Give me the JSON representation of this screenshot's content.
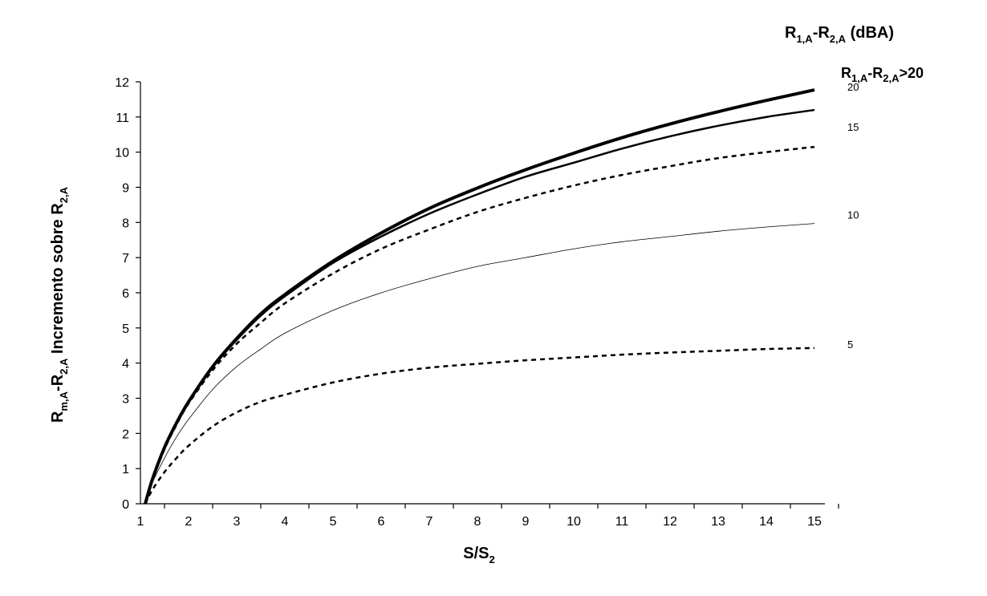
{
  "chart_data": {
    "type": "line",
    "title": "",
    "xlabel": {
      "main": "S/S",
      "sub": "2"
    },
    "ylabel": {
      "p1": "R",
      "s1": "m,A",
      "p2": "-R",
      "s2": "2,A",
      "p3": " Incremento sobre R",
      "s3": "2,A"
    },
    "legend_title": {
      "p1": "R",
      "s1": "1,A",
      "p2": "-R",
      "s2": "2,A",
      "p3": " (dBA)"
    },
    "legend_placement": "right",
    "xlim": [
      1,
      15
    ],
    "ylim": [
      0,
      12
    ],
    "x_ticks": [
      1,
      2,
      3,
      4,
      5,
      6,
      7,
      8,
      9,
      10,
      11,
      12,
      13,
      14,
      15
    ],
    "y_ticks": [
      0,
      1,
      2,
      3,
      4,
      5,
      6,
      7,
      8,
      9,
      10,
      11,
      12
    ],
    "grid": false,
    "x": [
      1.1,
      1.25,
      1.5,
      1.75,
      2,
      2.5,
      3,
      3.5,
      4,
      5,
      6,
      7,
      8,
      9,
      10,
      11,
      12,
      13,
      14,
      15
    ],
    "series": [
      {
        "name": "R1,A-R2,A>20",
        "tag": {
          "p1": "R",
          "s1": "1,A",
          "p2": "-R",
          "s2": "2,A",
          "p3": ">20"
        },
        "style": "thick",
        "values": [
          0.0,
          0.7,
          1.6,
          2.3,
          2.9,
          3.9,
          4.7,
          5.4,
          5.95,
          6.9,
          7.7,
          8.4,
          8.98,
          9.5,
          9.97,
          10.41,
          10.8,
          11.15,
          11.47,
          11.77
        ]
      },
      {
        "name": "20",
        "tag": {
          "p1": "20"
        },
        "style": "solid",
        "values": [
          0.0,
          0.7,
          1.6,
          2.3,
          2.9,
          3.88,
          4.66,
          5.35,
          5.9,
          6.85,
          7.6,
          8.25,
          8.8,
          9.3,
          9.7,
          10.1,
          10.45,
          10.75,
          11.0,
          11.2
        ]
      },
      {
        "name": "15",
        "tag": {
          "p1": "15"
        },
        "style": "dashed",
        "values": [
          0.0,
          0.68,
          1.55,
          2.25,
          2.85,
          3.8,
          4.55,
          5.15,
          5.7,
          6.55,
          7.25,
          7.8,
          8.3,
          8.7,
          9.05,
          9.35,
          9.6,
          9.83,
          10.0,
          10.15
        ]
      },
      {
        "name": "10",
        "tag": {
          "p1": "10"
        },
        "style": "thin",
        "values": [
          0.0,
          0.6,
          1.3,
          1.9,
          2.4,
          3.25,
          3.9,
          4.4,
          4.85,
          5.5,
          6.0,
          6.4,
          6.75,
          7.0,
          7.25,
          7.45,
          7.6,
          7.75,
          7.87,
          7.97
        ]
      },
      {
        "name": "5",
        "tag": {
          "p1": "5"
        },
        "style": "dashed",
        "values": [
          0.0,
          0.4,
          0.9,
          1.3,
          1.65,
          2.2,
          2.6,
          2.9,
          3.1,
          3.45,
          3.7,
          3.87,
          3.98,
          4.08,
          4.16,
          4.24,
          4.3,
          4.35,
          4.4,
          4.43
        ]
      }
    ]
  }
}
